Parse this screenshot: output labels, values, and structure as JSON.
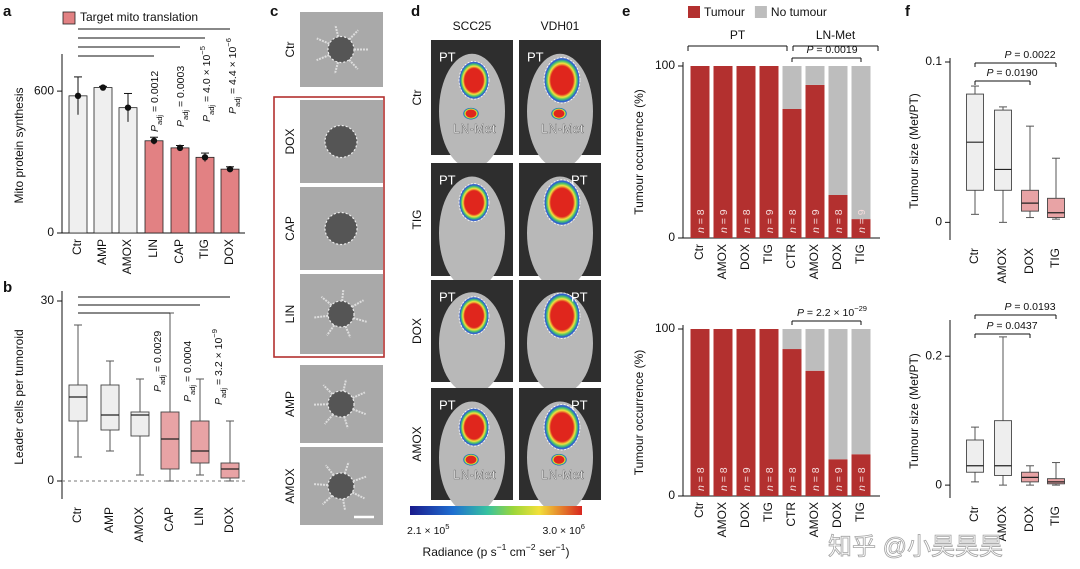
{
  "chart_data": [
    {
      "panel": "a",
      "type": "bar",
      "categories": [
        "Ctr",
        "AMP",
        "AMOX",
        "LIN",
        "CAP",
        "TIG",
        "DOX"
      ],
      "values": [
        580,
        615,
        530,
        390,
        360,
        320,
        270
      ],
      "errors": [
        80,
        5,
        60,
        15,
        10,
        18,
        10
      ],
      "colors": [
        "#efefef",
        "#efefef",
        "#efefef",
        "#e28183",
        "#e28183",
        "#e28183",
        "#e28183"
      ],
      "ylabel": "Mito protein synthesis",
      "ylim": [
        0,
        740
      ],
      "yticks": [
        0,
        600
      ],
      "legend": "Target mito translation",
      "legend_color": "#e28183",
      "annotations": [
        [
          {
            "italic": "P"
          },
          {
            "sub": "adj"
          },
          {
            "text": " = 0.0012"
          }
        ],
        [
          {
            "italic": "P"
          },
          {
            "sub": "adj"
          },
          {
            "text": " = 0.0003"
          }
        ],
        [
          {
            "italic": "P"
          },
          {
            "sub": "adj"
          },
          {
            "text": " = 4.0 × 10"
          },
          {
            "sup": "−5"
          }
        ],
        [
          {
            "italic": "P"
          },
          {
            "sub": "adj"
          },
          {
            "text": " = 4.4 × 10"
          },
          {
            "sup": "−6"
          }
        ]
      ]
    },
    {
      "panel": "b",
      "type": "box",
      "categories": [
        "Ctr",
        "AMP",
        "AMOX",
        "CAP",
        "LIN",
        "DOX"
      ],
      "boxes": [
        {
          "min": 4,
          "q1": 10,
          "median": 14,
          "q3": 16,
          "max": 26
        },
        {
          "min": 5,
          "q1": 8.5,
          "median": 11,
          "q3": 16,
          "max": 20
        },
        {
          "min": 1,
          "q1": 7.5,
          "median": 11,
          "q3": 11.5,
          "max": 17
        },
        {
          "min": 0,
          "q1": 2,
          "median": 7,
          "q3": 11.5,
          "max": 28
        },
        {
          "min": 1,
          "q1": 3,
          "median": 5,
          "q3": 10,
          "max": 17
        },
        {
          "min": 0,
          "q1": 0.5,
          "median": 2,
          "q3": 3,
          "max": 10
        }
      ],
      "colors": [
        "#eeeeee",
        "#eeeeee",
        "#eeeeee",
        "#e8a3a5",
        "#e8a3a5",
        "#e8a3a5"
      ],
      "ylabel": "Leader cells per tumoroid",
      "ylim": [
        -3,
        31
      ],
      "yticks": [
        0,
        30
      ],
      "zero_line": "dashed",
      "annotations": [
        [
          {
            "italic": "P"
          },
          {
            "sub": "adj"
          },
          {
            "text": " = 0.0029"
          }
        ],
        [
          {
            "italic": "P"
          },
          {
            "sub": "adj"
          },
          {
            "text": " = 0.0004"
          }
        ],
        [
          {
            "italic": "P"
          },
          {
            "sub": "adj"
          },
          {
            "text": " = 3.2 × 10"
          },
          {
            "sup": "−9"
          }
        ]
      ]
    },
    {
      "panel": "e",
      "type": "stacked_bar",
      "categories": [
        "Ctr",
        "AMOX",
        "DOX",
        "TIG",
        "CTR",
        "AMOX",
        "DOX",
        "TIG"
      ],
      "series": [
        {
          "name": "Tumour",
          "color": "#b3302f",
          "values": [
            100,
            100,
            100,
            100,
            75,
            89,
            25,
            11
          ]
        },
        {
          "name": "No tumour",
          "color": "#bdbdbd",
          "values": [
            0,
            0,
            0,
            0,
            25,
            11,
            75,
            89
          ]
        }
      ],
      "n_labels": [
        [
          {
            "italic": "n"
          },
          {
            "text": " = 8"
          }
        ],
        [
          {
            "italic": "n"
          },
          {
            "text": " = 9"
          }
        ],
        [
          {
            "italic": "n"
          },
          {
            "text": " = 8"
          }
        ],
        [
          {
            "italic": "n"
          },
          {
            "text": " = 9"
          }
        ],
        [
          {
            "italic": "n"
          },
          {
            "text": " = 8"
          }
        ],
        [
          {
            "italic": "n"
          },
          {
            "text": " = 9"
          }
        ],
        [
          {
            "italic": "n"
          },
          {
            "text": " = 8"
          }
        ],
        [
          {
            "italic": "n"
          },
          {
            "text": " = 9"
          }
        ]
      ],
      "groups": [
        "PT",
        "LN-Met"
      ],
      "ylabel": "Tumour occurrence (%)",
      "ylim": [
        0,
        100
      ],
      "yticks": [
        0,
        100
      ],
      "annotations": [
        [
          {
            "italic": "P"
          },
          {
            "text": " = 0.0019"
          }
        ]
      ]
    },
    {
      "type": "stacked_bar",
      "categories": [
        "Ctr",
        "AMOX",
        "DOX",
        "TIG",
        "CTR",
        "AMOX",
        "DOX",
        "TIG"
      ],
      "series": [
        {
          "color": "#b3302f",
          "values": [
            100,
            100,
            100,
            100,
            88,
            75,
            22,
            25
          ]
        },
        {
          "color": "#bdbdbd",
          "values": [
            0,
            0,
            0,
            0,
            12,
            25,
            78,
            75
          ]
        }
      ],
      "n_labels": [
        [
          {
            "italic": "n"
          },
          {
            "text": " = 8"
          }
        ],
        [
          {
            "italic": "n"
          },
          {
            "text": " = 8"
          }
        ],
        [
          {
            "italic": "n"
          },
          {
            "text": " = 9"
          }
        ],
        [
          {
            "italic": "n"
          },
          {
            "text": " = 8"
          }
        ],
        [
          {
            "italic": "n"
          },
          {
            "text": " = 8"
          }
        ],
        [
          {
            "italic": "n"
          },
          {
            "text": " = 8"
          }
        ],
        [
          {
            "italic": "n"
          },
          {
            "text": " = 9"
          }
        ],
        [
          {
            "italic": "n"
          },
          {
            "text": " = 8"
          }
        ]
      ],
      "ylabel": "Tumour occurrence (%)",
      "ylim": [
        0,
        100
      ],
      "yticks": [
        0,
        100
      ],
      "annotations": [
        [
          {
            "italic": "P"
          },
          {
            "text": " = 2.2 × 10"
          },
          {
            "sup": "−29"
          }
        ]
      ]
    },
    {
      "panel": "f",
      "type": "box",
      "categories": [
        "Ctr",
        "AMOX",
        "DOX",
        "TIG"
      ],
      "boxes": [
        {
          "min": 0.005,
          "q1": 0.02,
          "median": 0.05,
          "q3": 0.08,
          "max": 0.085
        },
        {
          "min": 0,
          "q1": 0.02,
          "median": 0.033,
          "q3": 0.07,
          "max": 0.072
        },
        {
          "min": 0.003,
          "q1": 0.007,
          "median": 0.012,
          "q3": 0.02,
          "max": 0.06
        },
        {
          "min": 0.002,
          "q1": 0.003,
          "median": 0.006,
          "q3": 0.015,
          "max": 0.04
        }
      ],
      "colors": [
        "#eeeeee",
        "#eeeeee",
        "#e8a3a5",
        "#e8a3a5"
      ],
      "ylabel": "Tumour size (Met/PT)",
      "ylim": [
        -0.011,
        0.1
      ],
      "yticks": [
        0,
        0.1
      ],
      "annotations": [
        [
          {
            "italic": "P"
          },
          {
            "text": " = 0.0022"
          }
        ],
        [
          {
            "italic": "P"
          },
          {
            "text": " = 0.0190"
          }
        ]
      ]
    },
    {
      "type": "box",
      "categories": [
        "Ctr",
        "AMOX",
        "DOX",
        "TIG"
      ],
      "boxes": [
        {
          "min": 0.005,
          "q1": 0.02,
          "median": 0.03,
          "q3": 0.07,
          "max": 0.09
        },
        {
          "min": 0,
          "q1": 0.015,
          "median": 0.03,
          "q3": 0.1,
          "max": 0.23
        },
        {
          "min": 0,
          "q1": 0.005,
          "median": 0.012,
          "q3": 0.02,
          "max": 0.03
        },
        {
          "min": 0,
          "q1": 0.002,
          "median": 0.005,
          "q3": 0.01,
          "max": 0.035
        }
      ],
      "colors": [
        "#eeeeee",
        "#eeeeee",
        "#e8a3a5",
        "#e8a3a5"
      ],
      "ylabel": "Tumour size (Met/PT)",
      "ylim": [
        -0.02,
        0.25
      ],
      "yticks": [
        0,
        0.2
      ],
      "annotations": [
        [
          {
            "italic": "P"
          },
          {
            "text": " = 0.0193"
          }
        ],
        [
          {
            "italic": "P"
          },
          {
            "text": " = 0.0437"
          }
        ]
      ]
    }
  ],
  "panel_c": {
    "panel": "c",
    "labels": [
      "Ctr",
      "DOX",
      "CAP",
      "LIN",
      "AMP",
      "AMOX"
    ]
  },
  "panel_d": {
    "panel": "d",
    "columns": [
      "SCC25",
      "VDH01"
    ],
    "rows": [
      "Ctr",
      "TIG",
      "DOX",
      "AMOX"
    ],
    "tiles": [
      [
        [
          "PT",
          "LN-Met"
        ],
        [
          "PT",
          "LN-Met"
        ]
      ],
      [
        [
          "PT"
        ],
        [
          "PT"
        ]
      ],
      [
        [
          "PT"
        ],
        [
          "PT"
        ]
      ],
      [
        [
          "PT",
          "LN-Met"
        ],
        [
          "PT",
          "LN-Met"
        ]
      ]
    ],
    "colorbar": {
      "min": [
        {
          "text": "2.1 × 10"
        },
        {
          "sup": "5"
        }
      ],
      "max": [
        {
          "text": "3.0 × 10"
        },
        {
          "sup": "6"
        }
      ],
      "title": [
        {
          "text": "Radiance (p s"
        },
        {
          "sup": "−1"
        },
        {
          "text": " cm"
        },
        {
          "sup": "−2"
        },
        {
          "text": " ser"
        },
        {
          "sup": "−1"
        },
        {
          "text": ")"
        }
      ]
    }
  },
  "watermark": "知乎 @小昊昊昊"
}
